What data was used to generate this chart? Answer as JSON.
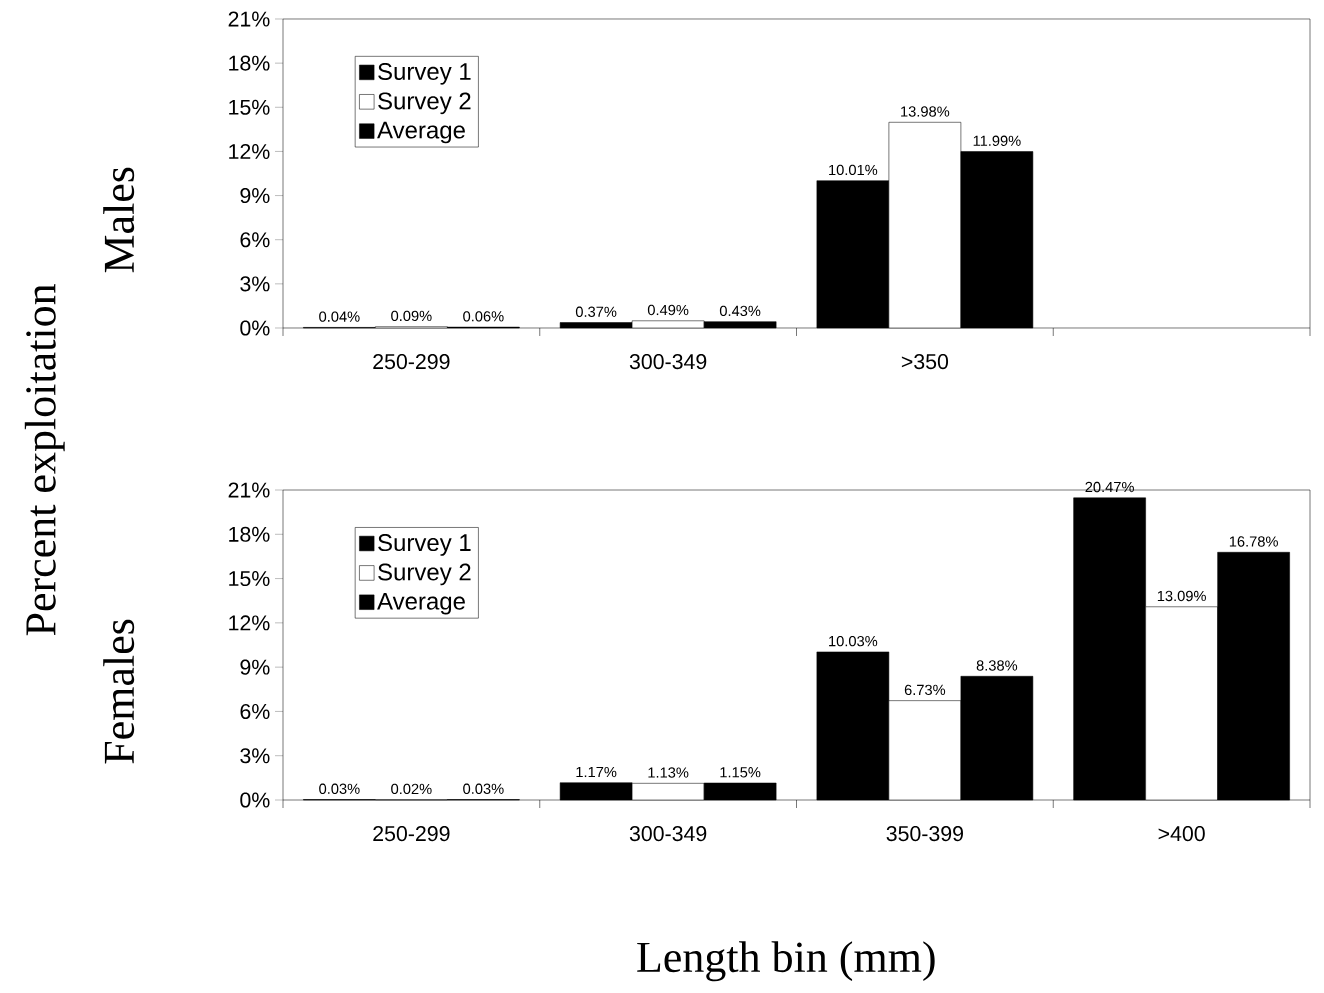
{
  "chart_data": [
    {
      "type": "bar",
      "ylabel": "Males",
      "annotations": [
        "Percent exploitation"
      ],
      "categories": [
        "250-299",
        "300-349",
        ">350"
      ],
      "series": [
        {
          "name": "Survey 1",
          "color": "#000000",
          "values": [
            0.04,
            0.37,
            10.01
          ],
          "value_labels": [
            "0.04%",
            "0.37%",
            "10.01%"
          ]
        },
        {
          "name": "Survey 2",
          "color": "#ffffff",
          "values": [
            0.09,
            0.49,
            13.98
          ],
          "value_labels": [
            "0.09%",
            "0.49%",
            "13.98%"
          ]
        },
        {
          "name": "Average",
          "color": "#000000",
          "values": [
            0.06,
            0.43,
            11.99
          ],
          "value_labels": [
            "0.06%",
            "0.43%",
            "11.99%"
          ]
        }
      ],
      "ylim": [
        0,
        21
      ],
      "yticks": [
        {
          "value": 0,
          "label": "0%"
        },
        {
          "value": 3,
          "label": "3%"
        },
        {
          "value": 6,
          "label": "6%"
        },
        {
          "value": 9,
          "label": "9%"
        },
        {
          "value": 12,
          "label": "12%"
        },
        {
          "value": 15,
          "label": "15%"
        },
        {
          "value": 18,
          "label": "18%"
        },
        {
          "value": 21,
          "label": "21%"
        }
      ],
      "legend": "top left"
    },
    {
      "type": "bar",
      "ylabel": "Females",
      "xlabel": "Length bin (mm)",
      "categories": [
        "250-299",
        "300-349",
        "350-399",
        ">400"
      ],
      "series": [
        {
          "name": "Survey 1",
          "color": "#000000",
          "values": [
            0.03,
            1.17,
            10.03,
            20.47
          ],
          "value_labels": [
            "0.03%",
            "1.17%",
            "10.03%",
            "20.47%"
          ]
        },
        {
          "name": "Survey 2",
          "color": "#ffffff",
          "values": [
            0.02,
            1.13,
            6.73,
            13.09
          ],
          "value_labels": [
            "0.02%",
            "1.13%",
            "6.73%",
            "13.09%"
          ]
        },
        {
          "name": "Average",
          "color": "#000000",
          "values": [
            0.03,
            1.15,
            8.38,
            16.78
          ],
          "value_labels": [
            "0.03%",
            "1.15%",
            "8.38%",
            "16.78%"
          ]
        }
      ],
      "ylim": [
        0,
        21
      ],
      "yticks": [
        {
          "value": 0,
          "label": "0%"
        },
        {
          "value": 3,
          "label": "3%"
        },
        {
          "value": 6,
          "label": "6%"
        },
        {
          "value": 9,
          "label": "9%"
        },
        {
          "value": 12,
          "label": "12%"
        },
        {
          "value": 15,
          "label": "15%"
        },
        {
          "value": 18,
          "label": "18%"
        },
        {
          "value": 21,
          "label": "21%"
        }
      ],
      "legend": "top left"
    }
  ]
}
